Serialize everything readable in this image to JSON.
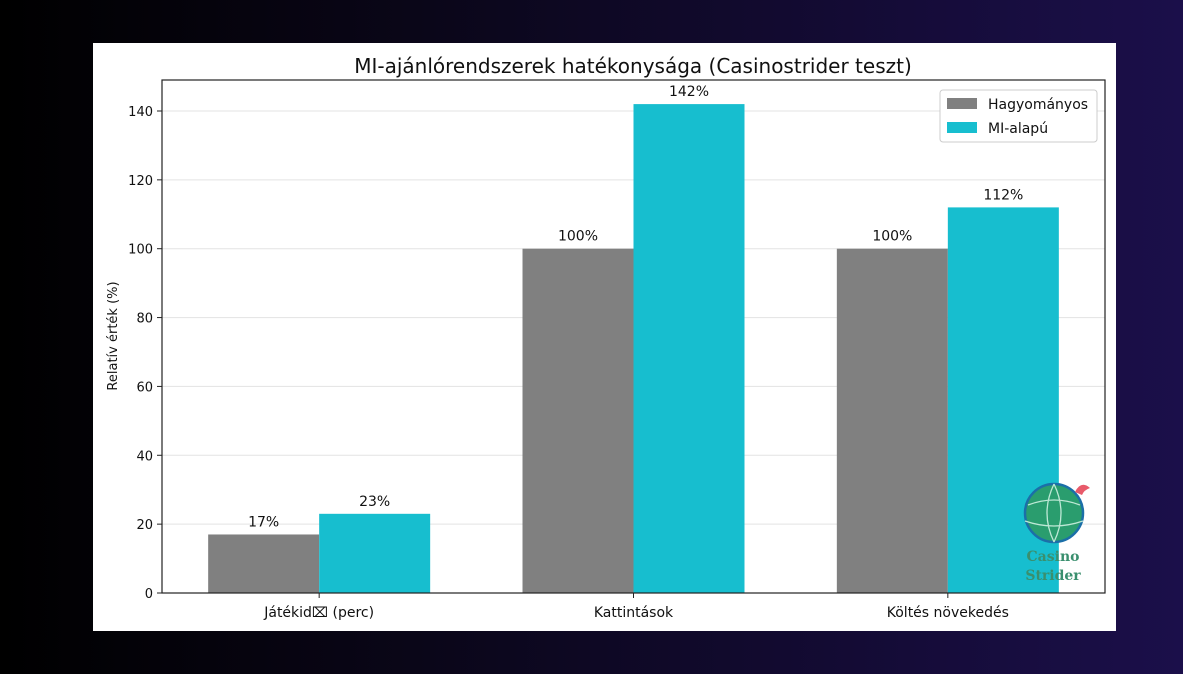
{
  "chart_data": {
    "type": "bar",
    "title": "MI-ajánlórendszerek hatékonysága (Casinostrider teszt)",
    "xlabel": "",
    "ylabel": "Relatív érték (%)",
    "categories": [
      "Játékid⌧ (perc)",
      "Kattintások",
      "Költés növekedés"
    ],
    "series": [
      {
        "name": "Hagyományos",
        "values": [
          17,
          100,
          100
        ],
        "labels": [
          "17%",
          "100%",
          "100%"
        ],
        "color": "#808080"
      },
      {
        "name": "MI-alapú",
        "values": [
          23,
          142,
          112
        ],
        "labels": [
          "23%",
          "142%",
          "112%"
        ],
        "color": "#17becf"
      }
    ],
    "yticks": [
      0,
      20,
      40,
      60,
      80,
      100,
      120,
      140
    ],
    "ylim": [
      0,
      149
    ],
    "grid": "horizontal",
    "legend_position": "top-right"
  },
  "logo": {
    "line1": "Casino",
    "line2": "Strider",
    "icon": "globe-icon"
  }
}
